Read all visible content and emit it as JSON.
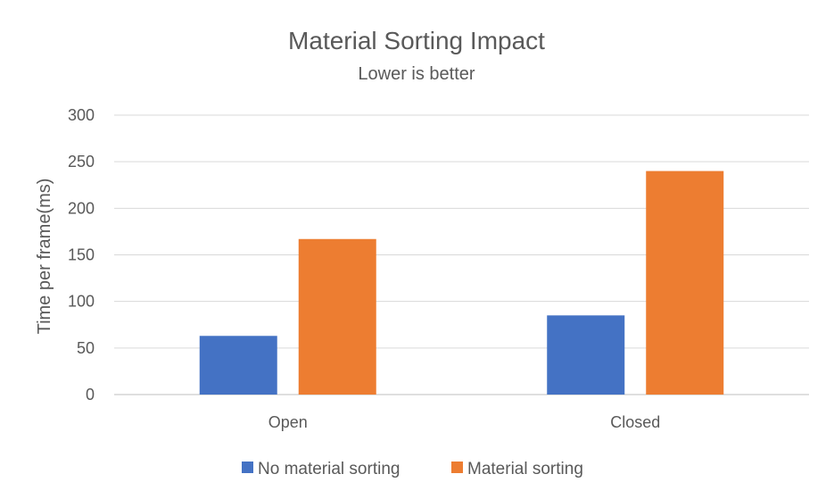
{
  "chart_data": {
    "type": "bar",
    "title": "Material Sorting Impact",
    "subtitle": "Lower is better",
    "xlabel": "",
    "ylabel": "Time per frame(ms)",
    "ylim": [
      0,
      300
    ],
    "yticks": [
      0,
      50,
      100,
      150,
      200,
      250,
      300
    ],
    "grid": true,
    "legend_position": "bottom",
    "categories": [
      "Open",
      "Closed"
    ],
    "series": [
      {
        "name": "No material sorting",
        "color": "#4472c4",
        "values": [
          63,
          85
        ]
      },
      {
        "name": "Material sorting",
        "color": "#ed7d31",
        "values": [
          167,
          240
        ]
      }
    ]
  }
}
